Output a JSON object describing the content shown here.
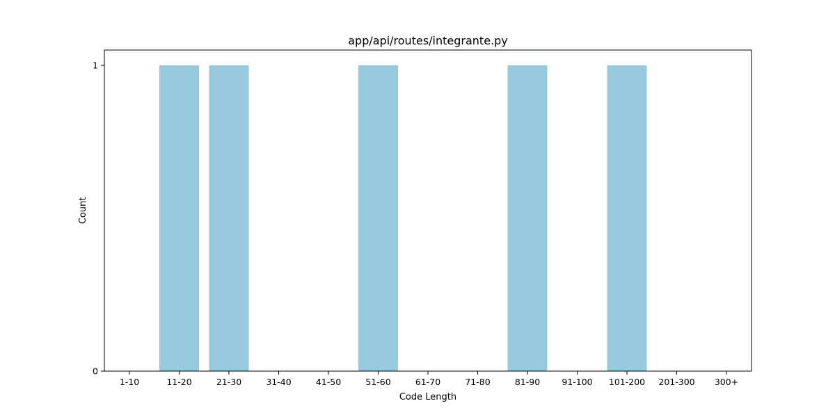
{
  "chart_data": {
    "type": "bar",
    "title": "app/api/routes/integrante.py",
    "xlabel": "Code Length",
    "ylabel": "Count",
    "categories": [
      "1-10",
      "11-20",
      "21-30",
      "31-40",
      "41-50",
      "51-60",
      "61-70",
      "71-80",
      "81-90",
      "91-100",
      "101-200",
      "201-300",
      "300+"
    ],
    "values": [
      0,
      1,
      1,
      0,
      0,
      1,
      0,
      0,
      1,
      0,
      1,
      0,
      0
    ],
    "ylim": [
      0,
      1.05
    ],
    "yticks": [
      0,
      1
    ],
    "grid": false,
    "bar_color": "#96c9dd"
  }
}
